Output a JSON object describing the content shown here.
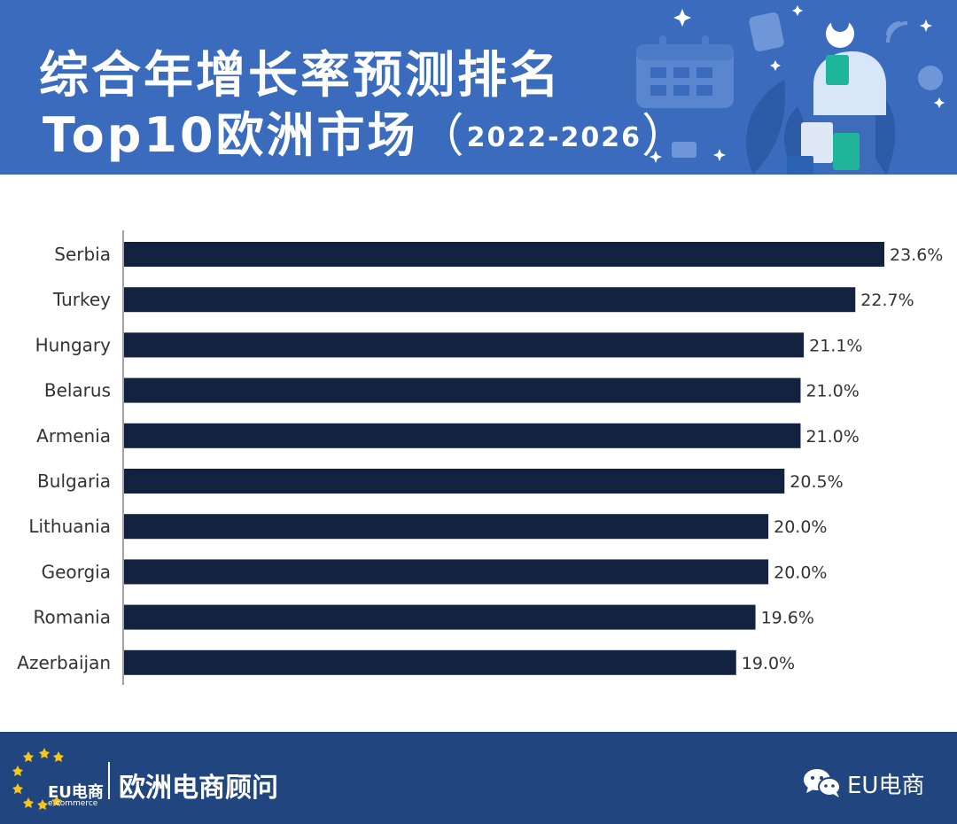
{
  "header": {
    "title_line1": "综合年增长率预测排名",
    "title_line2_main": "Top10欧洲市场",
    "title_line2_paren_open": "（",
    "title_line2_years": "2022-2026",
    "title_line2_paren_close": "）",
    "background_color": "#3a6bbd"
  },
  "chart_data": {
    "type": "bar",
    "orientation": "horizontal",
    "categories": [
      "Serbia",
      "Turkey",
      "Hungary",
      "Belarus",
      "Armenia",
      "Bulgaria",
      "Lithuania",
      "Georgia",
      "Romania",
      "Azerbaijan"
    ],
    "values": [
      23.6,
      22.7,
      21.1,
      21.0,
      21.0,
      20.5,
      20.0,
      20.0,
      19.6,
      19.0
    ],
    "value_labels": [
      "23.6%",
      "22.7%",
      "21.1%",
      "21.0%",
      "21.0%",
      "20.5%",
      "20.0%",
      "20.0%",
      "19.6%",
      "19.0%"
    ],
    "bar_color": "#13223e",
    "xlim": [
      0,
      23.6
    ],
    "grid": false
  },
  "footer": {
    "logo_main": "EU电商",
    "logo_sub": "e-commerce",
    "brand": "欧洲电商顾问",
    "account": "EU电商",
    "background_color": "#21467f"
  }
}
